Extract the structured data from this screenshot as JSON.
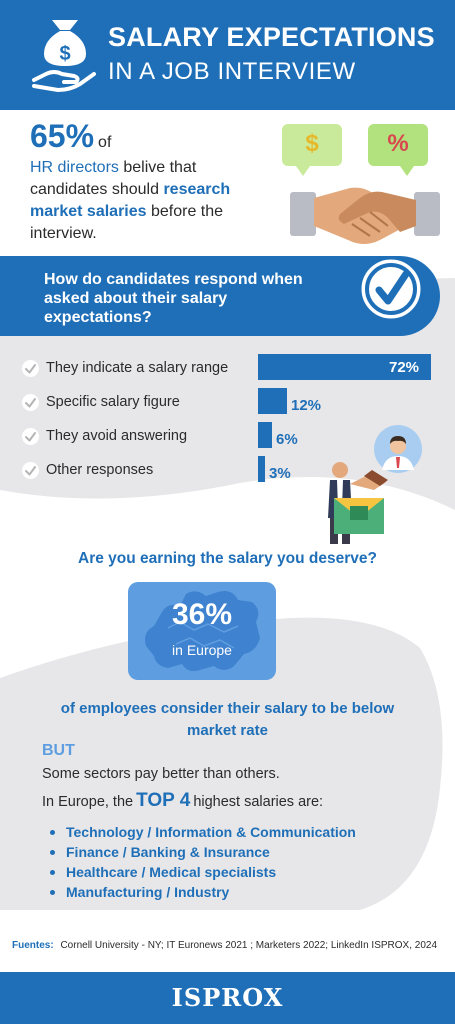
{
  "header": {
    "title_line1": "SALARY EXPECTATIONS",
    "title_line2": "IN A JOB INTERVIEW",
    "icon": "money-bag-hand-icon"
  },
  "stat": {
    "percent": "65%",
    "of": "of",
    "hr_directors": "HR directors",
    "text1": " belive that",
    "text2": "candidates should ",
    "research": "research",
    "market_salaries": "market salaries",
    "text3": " before the",
    "text4": "interview.",
    "bubble_dollar": "$",
    "bubble_percent": "%"
  },
  "question": {
    "text": "How do candidates respond when asked about their salary expectations?"
  },
  "chart_data": {
    "type": "bar",
    "orientation": "horizontal",
    "categories": [
      "They indicate a salary range",
      "Specific salary figure",
      "They avoid answering",
      "Other responses"
    ],
    "values": [
      72,
      12,
      6,
      3
    ],
    "value_labels": [
      "72%",
      "12%",
      "6%",
      "3%"
    ],
    "unit": "%",
    "xlim": [
      0,
      72
    ]
  },
  "europe": {
    "question": "Are you earning the salary you deserve?",
    "percent": "36%",
    "in_europe": "in Europe",
    "statement": "of employees consider their salary to be below market rate",
    "but": "BUT",
    "sectors_text": "Some sectors pay better than others.",
    "intro_prefix": "In Europe, the",
    "top4": "TOP 4",
    "intro_suffix": "highest salaries are:",
    "list": [
      "Technology / Information & Communication",
      "Finance / Banking & Insurance",
      "Healthcare / Medical specialists",
      "Manufacturing / Industry"
    ]
  },
  "sources": {
    "label": "Fuentes:",
    "text": "Cornell University - NY; IT Euronews 2021 ; Marketers 2022;  LinkedIn ISPROX, 2024"
  },
  "footer": {
    "logo": "ISPROX"
  },
  "colors": {
    "brand_blue": "#1f6fb8",
    "light_blue": "#5e9ee0",
    "gray_bg": "#e7e7e9"
  }
}
